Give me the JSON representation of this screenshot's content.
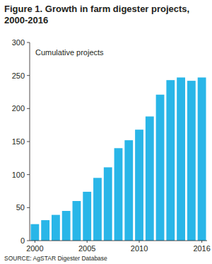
{
  "chart_data": {
    "type": "bar",
    "title": "Figure 1. Growth in farm digester projects, 2000-2016",
    "y_label": "Cumulative projects",
    "source": "SOURCE: AgSTAR Digester Database",
    "categories": [
      "2000",
      null,
      null,
      null,
      null,
      "2005",
      null,
      null,
      null,
      null,
      "2010",
      null,
      null,
      null,
      null,
      null,
      "2016"
    ],
    "values": [
      25,
      31,
      39,
      45,
      60,
      74,
      95,
      111,
      140,
      152,
      168,
      188,
      221,
      243,
      247,
      242,
      247
    ],
    "color": "#29b6e8",
    "ylim": [
      0,
      300
    ],
    "yticks": [
      0,
      50,
      100,
      150,
      200,
      250,
      300
    ],
    "grid": false
  }
}
